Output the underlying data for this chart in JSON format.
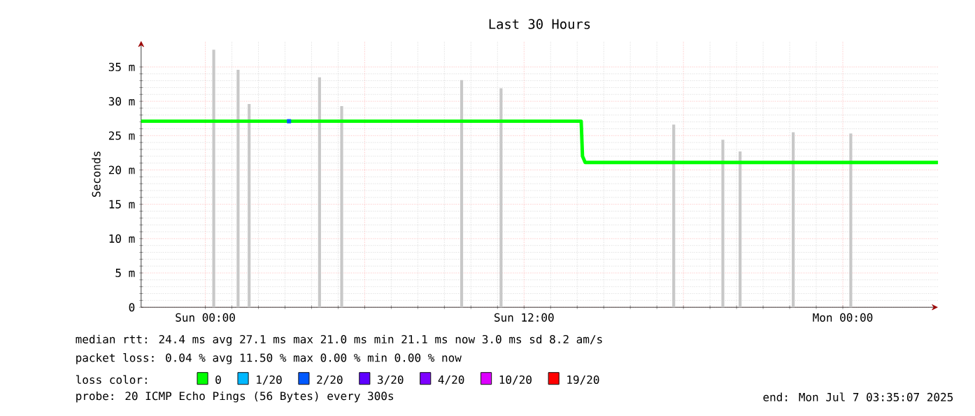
{
  "chart_data": {
    "type": "line",
    "title": "Last 30 Hours",
    "ylabel": "Seconds",
    "xlim": [
      "2025-07-05T21:35",
      "2025-07-07T03:35"
    ],
    "ylim": [
      0,
      38.8
    ],
    "xticks": [
      {
        "value": "2025-07-06T00:00",
        "label": "Sun 00:00"
      },
      {
        "value": "2025-07-06T06:00",
        "label": null
      },
      {
        "value": "2025-07-06T12:00",
        "label": "Sun 12:00"
      },
      {
        "value": "2025-07-06T18:00",
        "label": null
      },
      {
        "value": "2025-07-07T00:00",
        "label": "Mon 00:00"
      }
    ],
    "yticks": [
      0,
      {
        "value": 5,
        "label": "5 m"
      },
      {
        "value": 10,
        "label": "10 m"
      },
      {
        "value": 15,
        "label": "15 m"
      },
      {
        "value": 20,
        "label": "20 m"
      },
      {
        "value": 25,
        "label": "25 m"
      },
      {
        "value": 30,
        "label": "30 m"
      },
      {
        "value": 35,
        "label": "35 m"
      }
    ],
    "grid": true,
    "legend": "bottom",
    "legend_title": "loss color:",
    "series": [
      {
        "type": "bar",
        "color": "#c8c8c8",
        "x": [
          "2025-07-06T00:19",
          "2025-07-06T01:14",
          "2025-07-06T01:39",
          "2025-07-06T02:54",
          "2025-07-06T03:06",
          "2025-07-06T03:45",
          "2025-07-06T04:18",
          "2025-07-06T04:45",
          "2025-07-06T05:08",
          "2025-07-06T09:39",
          "2025-07-06T11:08",
          "2025-07-06T17:38",
          "2025-07-06T19:29",
          "2025-07-06T20:08",
          "2025-07-06T22:08",
          "2025-07-07T00:18"
        ],
        "values": [
          37.5,
          34.6,
          29.6,
          null,
          null,
          null,
          33.5,
          null,
          29.3,
          33.1,
          31.9,
          26.6,
          24.4,
          22.7,
          25.5,
          25.3
        ]
      },
      {
        "name": "0",
        "color": "#00ff00",
        "x": [
          "2025-07-05T21:35",
          "2025-07-06T14:09",
          "2025-07-06T14:12",
          "2025-07-06T14:18",
          "2025-07-07T03:35"
        ],
        "values": [
          27.1,
          27.1,
          22,
          21.1,
          21.1
        ]
      },
      {
        "type": "scatter",
        "name": "1/20",
        "color": "#00b8ff"
      },
      {
        "type": "scatter",
        "name": "2/20",
        "color": "#0059ff",
        "marker": "square",
        "x": [
          "2025-07-06T03:09"
        ],
        "values": [
          27.1
        ]
      },
      {
        "type": "scatter",
        "name": "3/20",
        "color": "#5e00ff"
      },
      {
        "type": "scatter",
        "name": "4/20",
        "color": "#7e00ff"
      },
      {
        "type": "scatter",
        "name": "10/20",
        "color": "#dd00ff"
      },
      {
        "type": "scatter",
        "name": "19/20",
        "color": "#ff0000"
      }
    ],
    "annotations": [
      "median rtt:  24.4 ms avg  27.1 ms max  21.0 ms min  21.1 ms now  3.0 ms sd  8.2   am/s",
      "packet loss: 0.04 % avg  11.50 % max  0.00 % min  0.00 % now",
      "probe:       20 ICMP Echo Pings (56 Bytes) every 300s",
      "end: Mon Jul  7 03:35:07 2025"
    ]
  }
}
